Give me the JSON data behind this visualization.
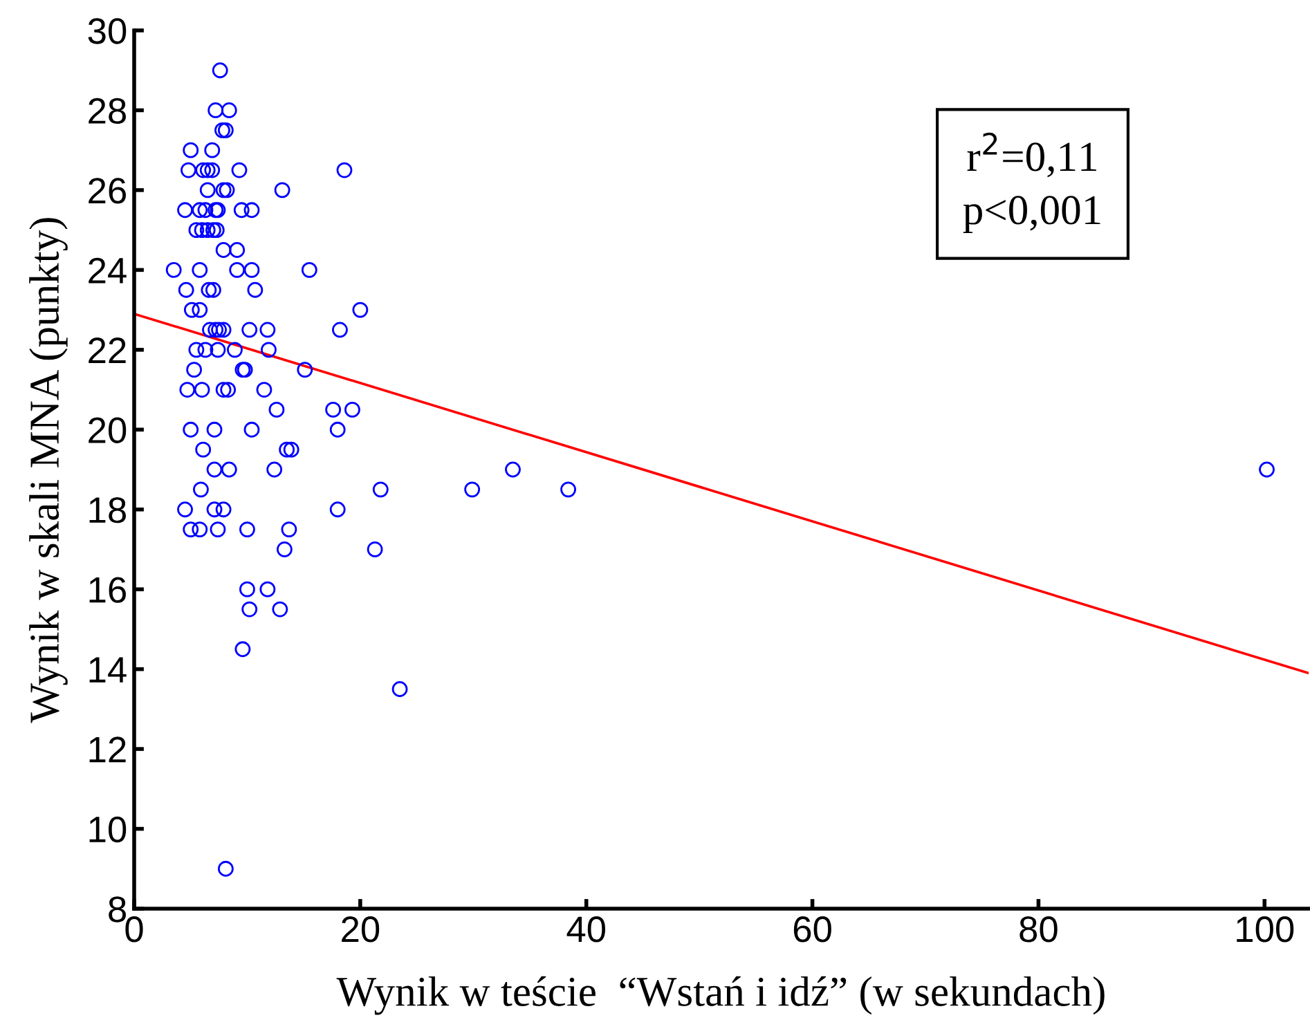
{
  "chart_data": {
    "type": "scatter",
    "xlabel": "Wynik w teście  “Wstań i idź” (w sekundach)",
    "ylabel": "Wynik w skali MNA (punkty)",
    "annotations": [
      "r$^{2}$=0,11",
      "p<0,001"
    ],
    "xlim": [
      0,
      103.9
    ],
    "xticks": [
      0,
      20,
      40,
      60,
      80,
      100
    ],
    "ylim": [
      8,
      30
    ],
    "yticks": [
      8,
      10,
      12,
      14,
      16,
      18,
      20,
      22,
      24,
      26,
      28,
      30
    ],
    "grid": false,
    "legend": false,
    "series": [
      {
        "color": "#0000ff",
        "marker": "circle",
        "x": [
          7.6,
          7.2,
          8.4,
          7.8,
          8.1,
          5.0,
          6.9,
          4.8,
          6.1,
          6.5,
          6.9,
          9.3,
          18.6,
          6.5,
          7.9,
          8.2,
          13.1,
          4.5,
          5.8,
          6.3,
          7.2,
          7.4,
          9.5,
          10.4,
          5.5,
          6.0,
          6.5,
          7.0,
          7.3,
          7.9,
          9.1,
          3.5,
          5.8,
          9.1,
          10.4,
          15.5,
          4.6,
          6.6,
          7.0,
          10.7,
          5.1,
          5.8,
          20.0,
          6.7,
          7.2,
          7.5,
          7.9,
          10.2,
          11.8,
          18.2,
          5.5,
          6.3,
          7.4,
          8.9,
          11.9,
          5.3,
          9.6,
          9.8,
          15.1,
          4.7,
          6.0,
          7.9,
          8.3,
          11.5,
          12.6,
          17.6,
          19.3,
          5.0,
          7.1,
          10.4,
          18.0,
          6.1,
          13.5,
          13.9,
          7.1,
          8.4,
          12.4,
          33.5,
          5.9,
          21.8,
          29.9,
          38.4,
          4.5,
          7.1,
          7.9,
          18.0,
          5.0,
          5.8,
          7.4,
          10.0,
          13.7,
          13.3,
          21.3,
          10.0,
          11.8,
          10.2,
          12.9,
          9.6,
          23.5,
          8.1,
          100.2
        ],
        "values": [
          29.0,
          28.0,
          28.0,
          27.5,
          27.5,
          27.0,
          27.0,
          26.5,
          26.5,
          26.5,
          26.5,
          26.5,
          26.5,
          26.0,
          26.0,
          26.0,
          26.0,
          25.5,
          25.5,
          25.5,
          25.5,
          25.5,
          25.5,
          25.5,
          25.0,
          25.0,
          25.0,
          25.0,
          25.0,
          24.5,
          24.5,
          24.0,
          24.0,
          24.0,
          24.0,
          24.0,
          23.5,
          23.5,
          23.5,
          23.5,
          23.0,
          23.0,
          23.0,
          22.5,
          22.5,
          22.5,
          22.5,
          22.5,
          22.5,
          22.5,
          22.0,
          22.0,
          22.0,
          22.0,
          22.0,
          21.5,
          21.5,
          21.5,
          21.5,
          21.0,
          21.0,
          21.0,
          21.0,
          21.0,
          20.5,
          20.5,
          20.5,
          20.0,
          20.0,
          20.0,
          20.0,
          19.5,
          19.5,
          19.5,
          19.0,
          19.0,
          19.0,
          19.0,
          18.5,
          18.5,
          18.5,
          18.5,
          18.0,
          18.0,
          18.0,
          18.0,
          17.5,
          17.5,
          17.5,
          17.5,
          17.5,
          17.0,
          17.0,
          16.0,
          16.0,
          15.5,
          15.5,
          14.5,
          13.5,
          9.0,
          19.0
        ]
      },
      {
        "type": "line",
        "color": "#ff0000",
        "line_style": "solid",
        "marker": "none",
        "x": [
          0,
          103.9
        ],
        "values": [
          22.9,
          13.9
        ]
      }
    ]
  }
}
